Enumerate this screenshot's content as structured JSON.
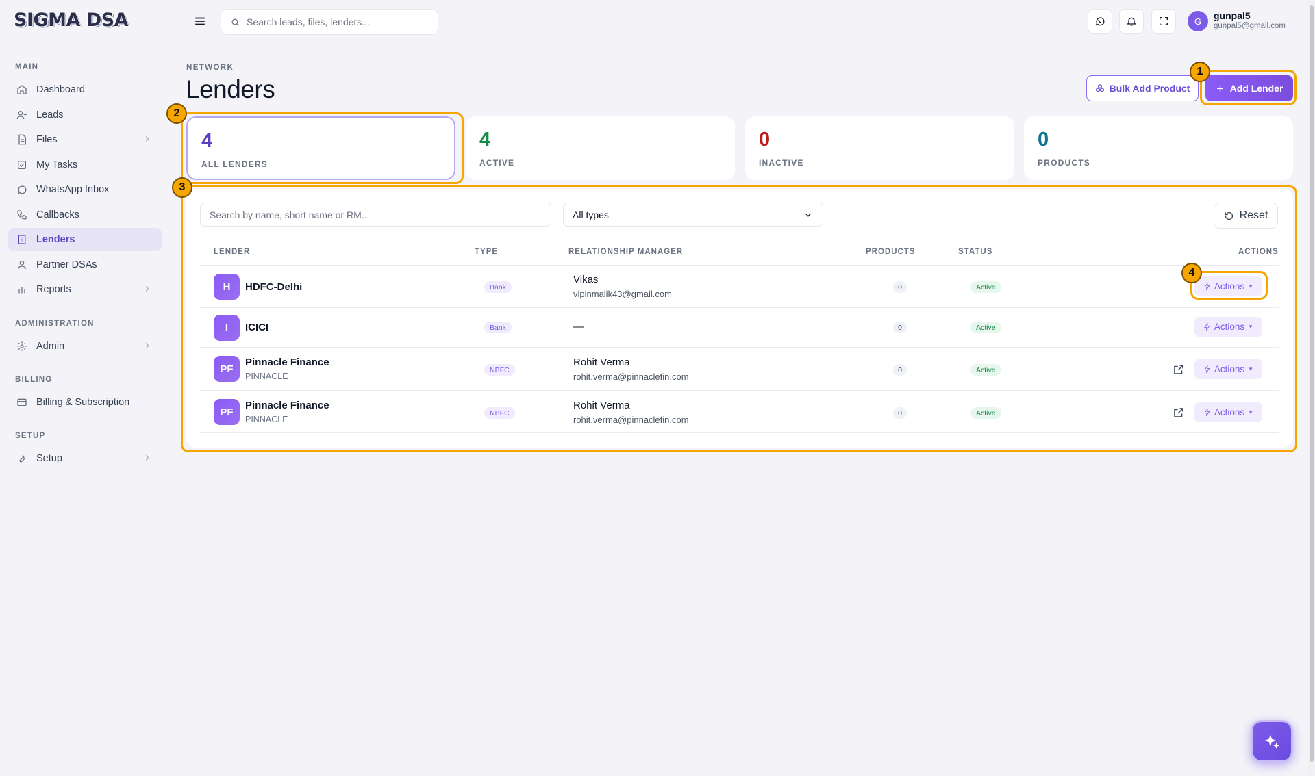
{
  "brand": {
    "logo": "SIGMA DSA"
  },
  "header": {
    "search_placeholder": "Search leads, files, lenders...",
    "user": {
      "initial": "G",
      "name": "gunpal5",
      "email": "gunpal5@gmail.com"
    }
  },
  "sidebar": {
    "sections": [
      "MAIN",
      "ADMINISTRATION",
      "BILLING",
      "SETUP"
    ],
    "items": [
      {
        "label": "Dashboard",
        "icon": "home-icon"
      },
      {
        "label": "Leads",
        "icon": "user-plus-icon"
      },
      {
        "label": "Files",
        "icon": "file-icon"
      },
      {
        "label": "My Tasks",
        "icon": "check-square-icon"
      },
      {
        "label": "WhatsApp Inbox",
        "icon": "whatsapp-icon"
      },
      {
        "label": "Callbacks",
        "icon": "phone-icon"
      },
      {
        "label": "Lenders",
        "icon": "building-icon"
      },
      {
        "label": "Partner DSAs",
        "icon": "users-icon"
      },
      {
        "label": "Reports",
        "icon": "bar-chart-icon"
      },
      {
        "label": "Admin",
        "icon": "gear-icon"
      },
      {
        "label": "Billing & Subscription",
        "icon": "credit-card-icon"
      },
      {
        "label": "Setup",
        "icon": "wrench-icon"
      }
    ]
  },
  "page": {
    "breadcrumb": "NETWORK",
    "title": "Lenders",
    "bulk_label": "Bulk Add Product",
    "add_label": "Add Lender"
  },
  "stats": [
    {
      "value": "4",
      "label": "ALL LENDERS",
      "color": "#5b3fc0"
    },
    {
      "value": "4",
      "label": "ACTIVE",
      "color": "#178a4c"
    },
    {
      "value": "0",
      "label": "INACTIVE",
      "color": "#b91c1c"
    },
    {
      "value": "0",
      "label": "PRODUCTS",
      "color": "#0e7490"
    }
  ],
  "filters": {
    "search_placeholder": "Search by name, short name or RM...",
    "type_value": "All types",
    "reset_label": "Reset"
  },
  "table": {
    "headers": [
      "LENDER",
      "TYPE",
      "RELATIONSHIP MANAGER",
      "PRODUCTS",
      "STATUS",
      "ACTIONS"
    ],
    "rows": [
      {
        "initials": "H",
        "name": "HDFC-Delhi",
        "short": "",
        "type": "Bank",
        "rm_name": "Vikas",
        "rm_email": "vipinmalik43@gmail.com",
        "products": "0",
        "status": "Active",
        "action": "Actions"
      },
      {
        "initials": "I",
        "name": "ICICI",
        "short": "",
        "type": "Bank",
        "rm_name": "—",
        "rm_email": "",
        "products": "0",
        "status": "Active",
        "action": "Actions"
      },
      {
        "initials": "PF",
        "name": "Pinnacle Finance",
        "short": "PINNACLE",
        "type": "NBFC",
        "rm_name": "Rohit Verma",
        "rm_email": "rohit.verma@pinnaclefin.com",
        "products": "0",
        "status": "Active",
        "action": "Actions"
      },
      {
        "initials": "PF",
        "name": "Pinnacle Finance",
        "short": "PINNACLE",
        "type": "NBFC",
        "rm_name": "Rohit Verma",
        "rm_email": "rohit.verma@pinnaclefin.com",
        "products": "0",
        "status": "Active",
        "action": "Actions"
      }
    ]
  },
  "callouts": [
    "1",
    "2",
    "3",
    "4"
  ],
  "colors": {
    "accent": "#7c5ce8",
    "highlight": "#f5a500"
  }
}
